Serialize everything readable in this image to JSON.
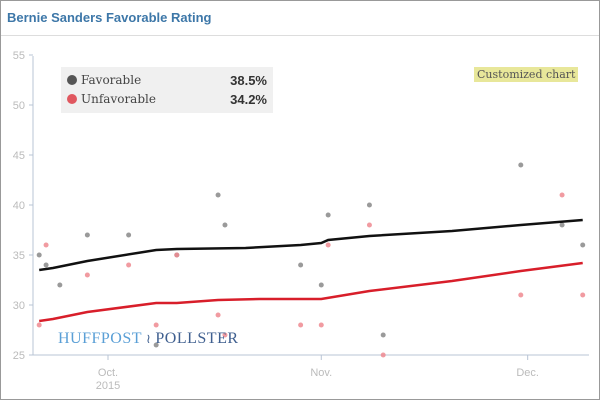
{
  "header": {
    "title": "Bernie Sanders Favorable Rating"
  },
  "badge": "Customized chart",
  "logo": {
    "left": "HUFFPOST",
    "right": "POLLSTER",
    "icon": "bird-icon"
  },
  "chart_data": {
    "type": "scatter",
    "title": "Bernie Sanders Favorable Rating",
    "ylim": [
      25,
      55
    ],
    "yticks": [
      25,
      30,
      35,
      40,
      45,
      50,
      55
    ],
    "xticks": [
      {
        "date": "2015-10-01",
        "label": "Oct.",
        "sub": "2015"
      },
      {
        "date": "2015-11-01",
        "label": "Nov.",
        "sub": ""
      },
      {
        "date": "2015-12-01",
        "label": "Dec.",
        "sub": ""
      }
    ],
    "legend_placement": "top-left",
    "series": [
      {
        "name": "Favorable",
        "latest": "38.5%",
        "color": "#555555",
        "point_color": "#888888",
        "line_color": "#111111",
        "points": [
          [
            "2015-09-21",
            35
          ],
          [
            "2015-09-22",
            34
          ],
          [
            "2015-09-24",
            32
          ],
          [
            "2015-09-28",
            37
          ],
          [
            "2015-10-04",
            37
          ],
          [
            "2015-10-08",
            26
          ],
          [
            "2015-10-11",
            35
          ],
          [
            "2015-10-17",
            41
          ],
          [
            "2015-10-18",
            38
          ],
          [
            "2015-10-29",
            34
          ],
          [
            "2015-11-01",
            32
          ],
          [
            "2015-11-02",
            39
          ],
          [
            "2015-11-08",
            40
          ],
          [
            "2015-11-10",
            27
          ],
          [
            "2015-11-30",
            44
          ],
          [
            "2015-12-06",
            38
          ],
          [
            "2015-12-09",
            36
          ]
        ],
        "trend": [
          [
            "2015-09-21",
            33.5
          ],
          [
            "2015-09-23",
            33.7
          ],
          [
            "2015-09-28",
            34.4
          ],
          [
            "2015-10-08",
            35.5
          ],
          [
            "2015-10-11",
            35.6
          ],
          [
            "2015-10-21",
            35.7
          ],
          [
            "2015-10-29",
            36.0
          ],
          [
            "2015-11-01",
            36.2
          ],
          [
            "2015-11-02",
            36.5
          ],
          [
            "2015-11-08",
            36.9
          ],
          [
            "2015-11-20",
            37.4
          ],
          [
            "2015-11-30",
            38.0
          ],
          [
            "2015-12-09",
            38.5
          ]
        ]
      },
      {
        "name": "Unfavorable",
        "latest": "34.2%",
        "color": "#e0575f",
        "point_color": "#ee8a90",
        "line_color": "#d81e2a",
        "points": [
          [
            "2015-09-21",
            28
          ],
          [
            "2015-09-22",
            36
          ],
          [
            "2015-09-28",
            33
          ],
          [
            "2015-10-04",
            34
          ],
          [
            "2015-10-08",
            28
          ],
          [
            "2015-10-11",
            35
          ],
          [
            "2015-10-17",
            29
          ],
          [
            "2015-10-18",
            27
          ],
          [
            "2015-10-29",
            28
          ],
          [
            "2015-11-01",
            28
          ],
          [
            "2015-11-02",
            36
          ],
          [
            "2015-11-08",
            38
          ],
          [
            "2015-11-10",
            25
          ],
          [
            "2015-11-30",
            31
          ],
          [
            "2015-12-06",
            41
          ],
          [
            "2015-12-09",
            31
          ]
        ],
        "trend": [
          [
            "2015-09-21",
            28.4
          ],
          [
            "2015-09-23",
            28.6
          ],
          [
            "2015-09-28",
            29.3
          ],
          [
            "2015-10-08",
            30.2
          ],
          [
            "2015-10-11",
            30.2
          ],
          [
            "2015-10-17",
            30.5
          ],
          [
            "2015-10-23",
            30.6
          ],
          [
            "2015-11-01",
            30.6
          ],
          [
            "2015-11-08",
            31.4
          ],
          [
            "2015-11-20",
            32.4
          ],
          [
            "2015-11-30",
            33.4
          ],
          [
            "2015-12-09",
            34.2
          ]
        ]
      }
    ]
  }
}
